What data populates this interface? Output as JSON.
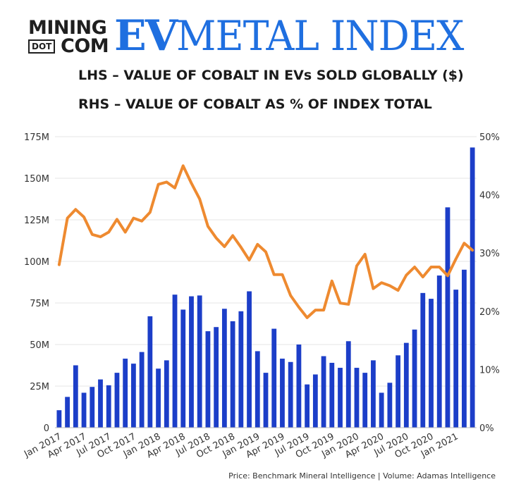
{
  "logo": {
    "mining": "MINING",
    "dot": "DOT",
    "com": "COM",
    "ev": "EV",
    "rest": "METAL INDEX"
  },
  "subtitle_lhs": "LHS – VALUE OF COBALT IN EVs SOLD GLOBALLY ($)",
  "subtitle_rhs": "RHS – VALUE OF COBALT AS % OF INDEX TOTAL",
  "source": "Price: Benchmark Mineral Intelligence | Volume: Adamas Intelligence",
  "colors": {
    "bar": "#1c3ec8",
    "line": "#ee8a30",
    "grid": "#e6e6e6"
  },
  "chart_data": {
    "type": "bar",
    "x_labels": [
      "Jan 2017",
      "Apr 2017",
      "Jul 2017",
      "Oct 2017",
      "Jan 2018",
      "Apr 2018",
      "Jul 2018",
      "Oct 2018",
      "Jan 2019",
      "Apr 2019",
      "Jul 2019",
      "Oct 2019",
      "Jan 2020",
      "Apr 2020",
      "Jul 2020",
      "Oct 2020",
      "Jan 2021"
    ],
    "left_axis": {
      "ticks": [
        "0",
        "25M",
        "50M",
        "75M",
        "100M",
        "125M",
        "150M",
        "175M"
      ],
      "ylim": [
        0,
        175
      ]
    },
    "right_axis": {
      "ticks": [
        "0%",
        "10%",
        "20%",
        "30%",
        "40%",
        "50%"
      ],
      "ylim": [
        0,
        50
      ]
    },
    "series": [
      {
        "kind": "bar",
        "axis": "left",
        "unit": "M",
        "values": [
          10.5,
          18.5,
          37.5,
          21,
          24.5,
          29,
          25.5,
          33,
          41.5,
          38.5,
          45.5,
          67,
          35.5,
          40.5,
          80,
          71,
          79,
          79.5,
          58,
          60.5,
          71.5,
          64,
          70,
          82,
          46,
          33,
          59.5,
          41.5,
          39.5,
          50,
          26,
          32,
          43,
          39,
          36,
          52,
          36,
          33,
          40.5,
          21,
          27,
          43.5,
          51,
          59,
          81,
          77.5,
          91.5,
          132.5,
          83,
          95,
          168.5
        ]
      },
      {
        "kind": "line",
        "axis": "right",
        "unit": "%",
        "values": [
          28,
          36,
          37.5,
          36.2,
          33.2,
          32.8,
          33.6,
          35.8,
          33.6,
          36,
          35.5,
          37,
          41.8,
          42.2,
          41.2,
          45,
          42,
          39.3,
          34.6,
          32.6,
          31.1,
          33,
          31,
          28.8,
          31.5,
          30.2,
          26.3,
          26.3,
          22.7,
          20.7,
          18.9,
          20.2,
          20.2,
          25.2,
          21.4,
          21.2,
          27.8,
          29.8,
          23.9,
          24.9,
          24.4,
          23.6,
          26.2,
          27.6,
          25.9,
          27.6,
          27.6,
          26.1,
          29,
          31.7,
          30.5
        ]
      }
    ]
  }
}
